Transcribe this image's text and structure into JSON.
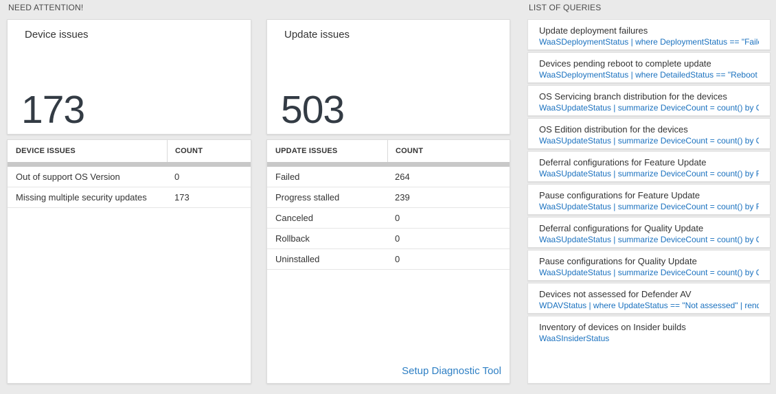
{
  "sections": {
    "need_attention": "NEED ATTENTION!",
    "list_of_queries": "LIST OF QUERIES"
  },
  "device_card": {
    "title": "Device issues",
    "count": "173"
  },
  "device_table": {
    "headers": [
      "DEVICE ISSUES",
      "COUNT"
    ],
    "rows": [
      {
        "label": "Out of support OS Version",
        "count": "0"
      },
      {
        "label": "Missing multiple security updates",
        "count": "173"
      }
    ]
  },
  "update_card": {
    "title": "Update issues",
    "count": "503"
  },
  "update_table": {
    "headers": [
      "UPDATE ISSUES",
      "COUNT"
    ],
    "rows": [
      {
        "label": "Failed",
        "count": "264"
      },
      {
        "label": "Progress stalled",
        "count": "239"
      },
      {
        "label": "Canceled",
        "count": "0"
      },
      {
        "label": "Rollback",
        "count": "0"
      },
      {
        "label": "Uninstalled",
        "count": "0"
      }
    ],
    "footer_link": "Setup Diagnostic Tool"
  },
  "queries": {
    "items": [
      {
        "title": "Update deployment failures",
        "query": "WaaSDeploymentStatus | where DeploymentStatus == \"Failed\" |..."
      },
      {
        "title": "Devices pending reboot to complete update",
        "query": "WaaSDeploymentStatus | where DetailedStatus == \"Reboot pend..."
      },
      {
        "title": "OS Servicing branch distribution for the devices",
        "query": "WaaSUpdateStatus | summarize DeviceCount = count() by OSSer..."
      },
      {
        "title": "OS Edition distribution for the devices",
        "query": "WaaSUpdateStatus | summarize DeviceCount = count() by OSEdit..."
      },
      {
        "title": "Deferral configurations for Feature Update",
        "query": "WaaSUpdateStatus | summarize DeviceCount = count() by Featur..."
      },
      {
        "title": "Pause configurations for Feature Update",
        "query": "WaaSUpdateStatus | summarize DeviceCount = count() by Featur..."
      },
      {
        "title": "Deferral configurations for Quality Update",
        "query": "WaaSUpdateStatus | summarize DeviceCount = count() by Qualit..."
      },
      {
        "title": "Pause configurations for Quality Update",
        "query": "WaaSUpdateStatus | summarize DeviceCount = count() by Qualit..."
      },
      {
        "title": "Devices not assessed for Defender AV",
        "query": "WDAVStatus | where UpdateStatus == \"Not assessed\" | render ta..."
      },
      {
        "title": "Inventory of devices on Insider builds",
        "query": "WaaSInsiderStatus"
      }
    ]
  },
  "colors": {
    "page_background": "#eaeaea",
    "panel_background": "#ffffff",
    "link_blue": "#1a71bf",
    "setup_link_blue": "#2e7fc4",
    "big_number": "#333b44",
    "scrollbar_gray": "#c8c8c8"
  }
}
